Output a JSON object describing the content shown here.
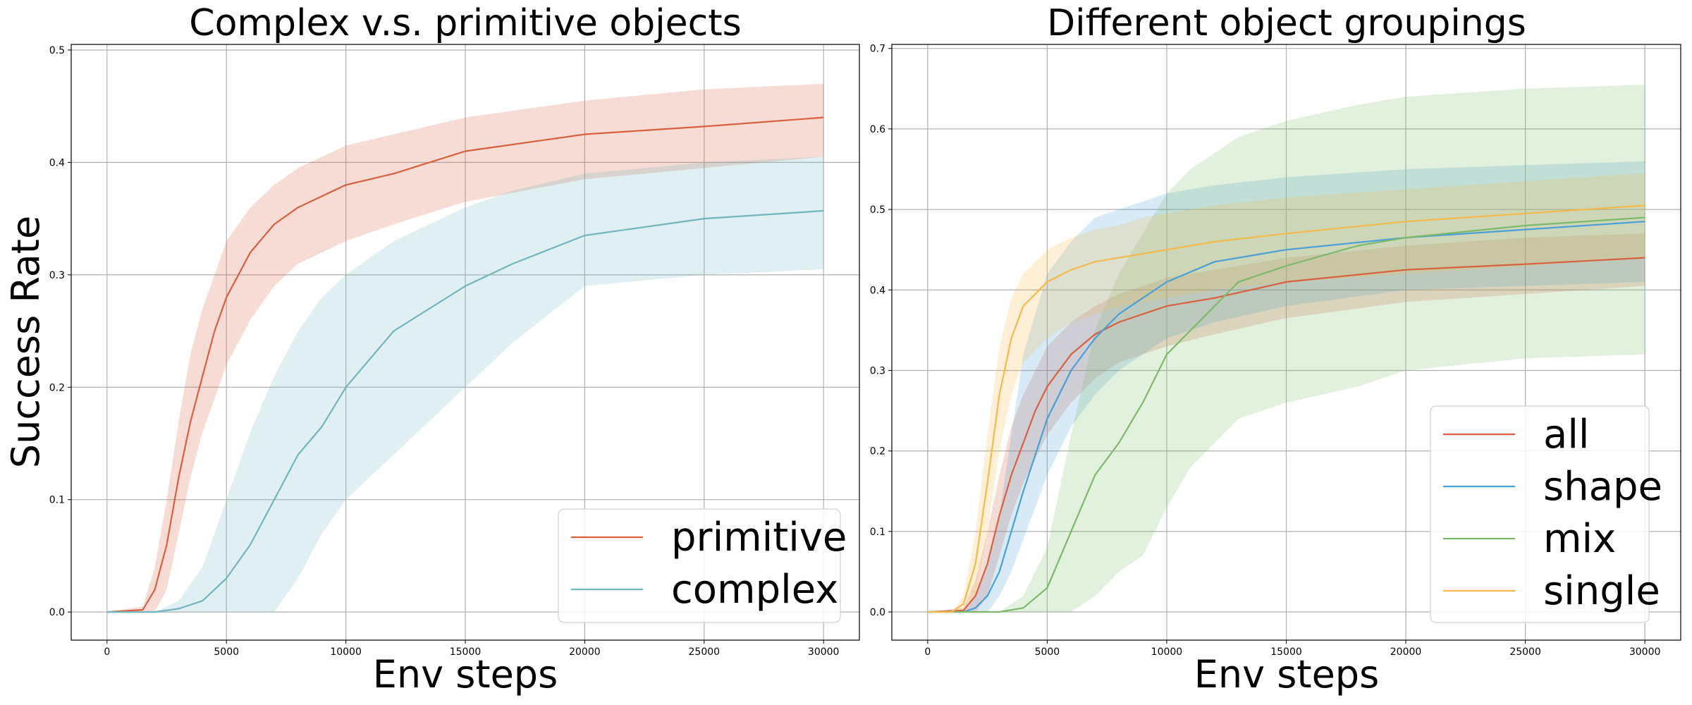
{
  "chart_data": [
    {
      "type": "line",
      "title": "Complex v.s. primitive objects",
      "xlabel": "Env steps",
      "ylabel": "Success Rate",
      "xlim": [
        -1500,
        31500
      ],
      "ylim": [
        -0.025,
        0.505
      ],
      "xticks": [
        0,
        5000,
        10000,
        15000,
        20000,
        25000,
        30000
      ],
      "xtick_labels": [
        "0",
        "5000",
        "10000",
        "15000",
        "20000",
        "25000",
        "30000"
      ],
      "yticks": [
        0.0,
        0.1,
        0.2,
        0.3,
        0.4,
        0.5
      ],
      "ytick_labels": [
        "0.0",
        "0.1",
        "0.2",
        "0.3",
        "0.4",
        "0.5"
      ],
      "grid": true,
      "legend_position": "lower-right",
      "series": [
        {
          "name": "primitive",
          "color": "#d9603f",
          "x": [
            0,
            1500,
            2000,
            2500,
            3000,
            3500,
            4000,
            4500,
            5000,
            6000,
            7000,
            8000,
            9000,
            10000,
            12000,
            15000,
            20000,
            25000,
            30000
          ],
          "y": [
            0.0,
            0.002,
            0.02,
            0.06,
            0.12,
            0.17,
            0.21,
            0.25,
            0.28,
            0.32,
            0.345,
            0.36,
            0.37,
            0.38,
            0.39,
            0.41,
            0.425,
            0.432,
            0.44
          ],
          "lower": [
            0.0,
            0.0,
            0.0,
            0.02,
            0.07,
            0.12,
            0.16,
            0.19,
            0.22,
            0.26,
            0.29,
            0.31,
            0.32,
            0.33,
            0.345,
            0.365,
            0.385,
            0.395,
            0.405
          ],
          "upper": [
            0.0,
            0.005,
            0.04,
            0.1,
            0.17,
            0.23,
            0.27,
            0.3,
            0.33,
            0.36,
            0.38,
            0.395,
            0.405,
            0.415,
            0.425,
            0.44,
            0.455,
            0.465,
            0.47
          ]
        },
        {
          "name": "complex",
          "color": "#72b5bd",
          "x": [
            0,
            2000,
            3000,
            4000,
            5000,
            6000,
            7000,
            8000,
            9000,
            10000,
            12000,
            15000,
            17000,
            20000,
            25000,
            30000
          ],
          "y": [
            0.0,
            0.0,
            0.003,
            0.01,
            0.03,
            0.06,
            0.1,
            0.14,
            0.165,
            0.2,
            0.25,
            0.29,
            0.31,
            0.335,
            0.35,
            0.357
          ],
          "lower": [
            0.0,
            0.0,
            0.0,
            0.0,
            0.0,
            0.0,
            0.0,
            0.03,
            0.07,
            0.1,
            0.14,
            0.2,
            0.24,
            0.29,
            0.3,
            0.305
          ],
          "upper": [
            0.0,
            0.0,
            0.01,
            0.04,
            0.1,
            0.16,
            0.21,
            0.25,
            0.28,
            0.3,
            0.33,
            0.36,
            0.375,
            0.39,
            0.4,
            0.405
          ]
        }
      ]
    },
    {
      "type": "line",
      "title": "Different object groupings",
      "xlabel": "Env steps",
      "ylabel": "",
      "xlim": [
        -1500,
        31500
      ],
      "ylim": [
        -0.035,
        0.705
      ],
      "xticks": [
        0,
        5000,
        10000,
        15000,
        20000,
        25000,
        30000
      ],
      "xtick_labels": [
        "0",
        "5000",
        "10000",
        "15000",
        "20000",
        "25000",
        "30000"
      ],
      "yticks": [
        0.0,
        0.1,
        0.2,
        0.3,
        0.4,
        0.5,
        0.6,
        0.7
      ],
      "ytick_labels": [
        "0.0",
        "0.1",
        "0.2",
        "0.3",
        "0.4",
        "0.5",
        "0.6",
        "0.7"
      ],
      "grid": true,
      "legend_position": "lower-right",
      "series": [
        {
          "name": "all",
          "color": "#d9603f",
          "x": [
            0,
            1500,
            2000,
            2500,
            3000,
            3500,
            4000,
            4500,
            5000,
            6000,
            7000,
            8000,
            9000,
            10000,
            12000,
            15000,
            20000,
            25000,
            30000
          ],
          "y": [
            0.0,
            0.002,
            0.02,
            0.06,
            0.12,
            0.17,
            0.21,
            0.25,
            0.28,
            0.32,
            0.345,
            0.36,
            0.37,
            0.38,
            0.39,
            0.41,
            0.425,
            0.432,
            0.44
          ],
          "lower": [
            0.0,
            0.0,
            0.0,
            0.02,
            0.07,
            0.12,
            0.16,
            0.19,
            0.22,
            0.26,
            0.29,
            0.31,
            0.32,
            0.33,
            0.345,
            0.365,
            0.385,
            0.395,
            0.405
          ],
          "upper": [
            0.0,
            0.005,
            0.04,
            0.1,
            0.17,
            0.23,
            0.27,
            0.3,
            0.33,
            0.36,
            0.38,
            0.395,
            0.405,
            0.415,
            0.425,
            0.44,
            0.455,
            0.465,
            0.47
          ]
        },
        {
          "name": "shape",
          "color": "#4a9fd8",
          "x": [
            0,
            1500,
            2000,
            2500,
            3000,
            3500,
            4000,
            5000,
            6000,
            7000,
            8000,
            9000,
            10000,
            12000,
            15000,
            20000,
            25000,
            30000
          ],
          "y": [
            0.0,
            0.0,
            0.005,
            0.02,
            0.05,
            0.1,
            0.15,
            0.24,
            0.3,
            0.34,
            0.37,
            0.39,
            0.41,
            0.435,
            0.45,
            0.465,
            0.475,
            0.485
          ],
          "lower": [
            0.0,
            0.0,
            0.0,
            0.0,
            0.02,
            0.05,
            0.09,
            0.17,
            0.23,
            0.27,
            0.3,
            0.32,
            0.34,
            0.36,
            0.38,
            0.4,
            0.405,
            0.41
          ],
          "upper": [
            0.0,
            0.0,
            0.02,
            0.06,
            0.12,
            0.22,
            0.32,
            0.42,
            0.46,
            0.49,
            0.5,
            0.51,
            0.52,
            0.53,
            0.54,
            0.55,
            0.555,
            0.56
          ]
        },
        {
          "name": "mix",
          "color": "#7cb96a",
          "x": [
            0,
            3000,
            4000,
            5000,
            6000,
            7000,
            8000,
            9000,
            10000,
            11000,
            12000,
            13000,
            15000,
            18000,
            20000,
            25000,
            30000
          ],
          "y": [
            0.0,
            0.0,
            0.005,
            0.03,
            0.1,
            0.17,
            0.21,
            0.26,
            0.32,
            0.35,
            0.38,
            0.41,
            0.43,
            0.455,
            0.465,
            0.48,
            0.49
          ],
          "lower": [
            0.0,
            0.0,
            0.0,
            0.0,
            0.0,
            0.02,
            0.05,
            0.07,
            0.13,
            0.18,
            0.21,
            0.24,
            0.26,
            0.28,
            0.3,
            0.315,
            0.32
          ],
          "upper": [
            0.0,
            0.0,
            0.02,
            0.08,
            0.22,
            0.35,
            0.42,
            0.47,
            0.52,
            0.55,
            0.57,
            0.59,
            0.61,
            0.63,
            0.64,
            0.65,
            0.655
          ]
        },
        {
          "name": "single",
          "color": "#f5b94a",
          "x": [
            0,
            1000,
            1500,
            2000,
            2500,
            3000,
            3500,
            4000,
            5000,
            6000,
            7000,
            8000,
            9000,
            10000,
            12000,
            15000,
            20000,
            25000,
            30000
          ],
          "y": [
            0.0,
            0.0,
            0.01,
            0.06,
            0.16,
            0.27,
            0.34,
            0.38,
            0.41,
            0.425,
            0.435,
            0.44,
            0.445,
            0.45,
            0.46,
            0.47,
            0.485,
            0.495,
            0.505
          ],
          "lower": [
            0.0,
            0.0,
            0.0,
            0.02,
            0.1,
            0.2,
            0.27,
            0.31,
            0.34,
            0.36,
            0.37,
            0.38,
            0.385,
            0.39,
            0.4,
            0.41,
            0.42,
            0.43,
            0.44
          ],
          "upper": [
            0.0,
            0.0,
            0.02,
            0.1,
            0.22,
            0.33,
            0.39,
            0.42,
            0.45,
            0.465,
            0.475,
            0.48,
            0.49,
            0.495,
            0.505,
            0.515,
            0.525,
            0.535,
            0.545
          ]
        }
      ]
    }
  ]
}
